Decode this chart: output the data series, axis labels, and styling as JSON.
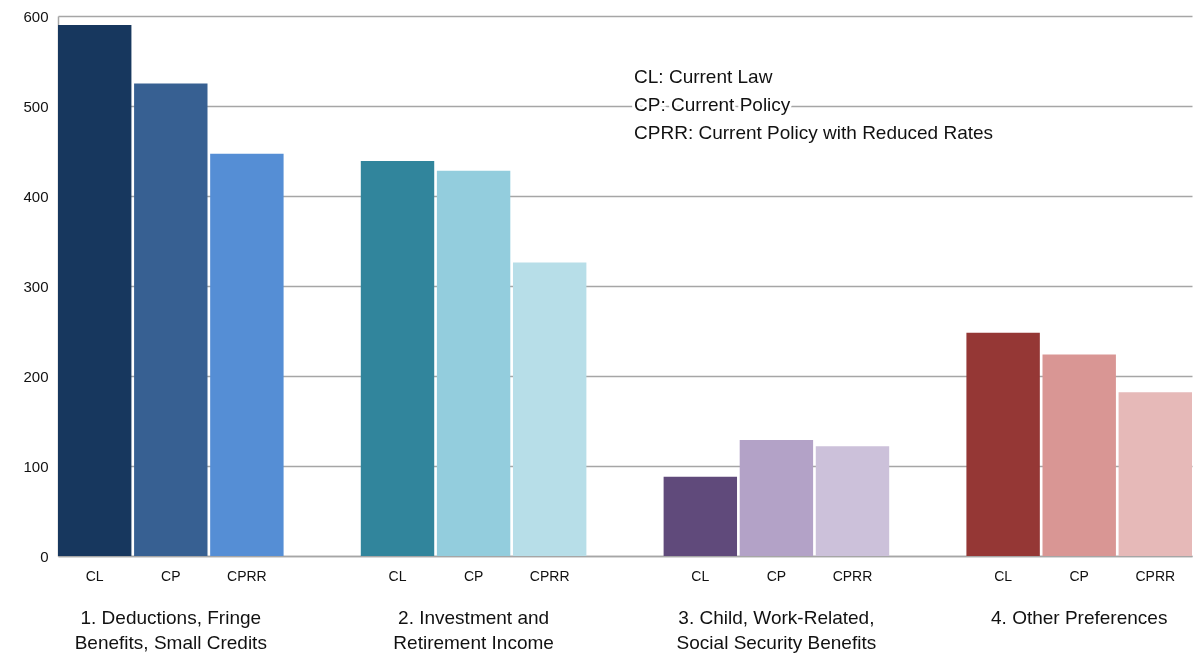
{
  "chart_data": {
    "type": "bar",
    "categories": [
      "1. Deductions, Fringe\nBenefits, Small Credits",
      "2. Investment and\nRetirement Income",
      "3. Child, Work-Related,\nSocial Security Benefits",
      "4. Other Preferences"
    ],
    "series": [
      {
        "name": "CL",
        "colors": [
          "#17375e",
          "#31859c",
          "#604a7b",
          "#953735"
        ],
        "values": [
          590,
          439,
          88,
          248
        ]
      },
      {
        "name": "CP",
        "colors": [
          "#376092",
          "#93cddd",
          "#b3a2c7",
          "#d99694"
        ],
        "values": [
          525,
          428,
          129,
          224
        ]
      },
      {
        "name": "CPRR",
        "colors": [
          "#558ed5",
          "#b7dee8",
          "#ccc1da",
          "#e6b9b8"
        ],
        "values": [
          447,
          326,
          122,
          182
        ]
      }
    ],
    "ylim": [
      0,
      600
    ],
    "yticks": [
      0,
      100,
      200,
      300,
      400,
      500,
      600
    ],
    "grid": "y",
    "annotations": [
      "CL: Current Law",
      "CP: Current Policy",
      "CPRR: Current Policy with Reduced Rates"
    ]
  }
}
